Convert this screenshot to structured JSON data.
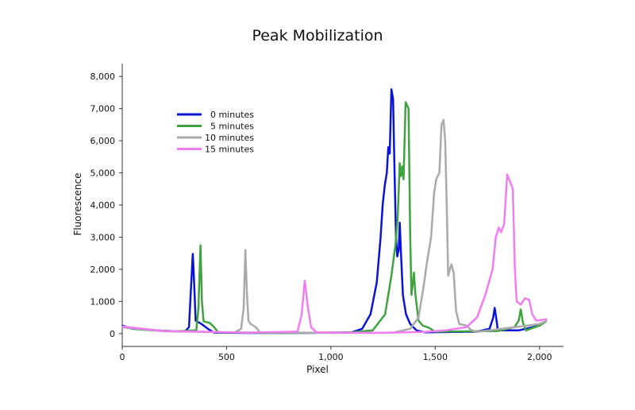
{
  "chart_data": {
    "type": "line",
    "title": "Peak Mobilization",
    "xlabel": "Pixel",
    "ylabel": "Fluorescence",
    "xlim": [
      0,
      2115
    ],
    "ylim": [
      -400,
      8400
    ],
    "xticks": [
      0,
      500,
      1000,
      1500,
      2000
    ],
    "xtick_labels": [
      "0",
      "500",
      "1,000",
      "1,500",
      "2,000"
    ],
    "yticks": [
      0,
      1000,
      2000,
      3000,
      4000,
      5000,
      6000,
      7000,
      8000
    ],
    "ytick_labels": [
      "0",
      "1,000",
      "2,000",
      "3,000",
      "4,000",
      "5,000",
      "6,000",
      "7,000",
      "8,000"
    ],
    "grid": false,
    "legend_placement": "top-left",
    "series": [
      {
        "name": "0 minutes",
        "color": "#0a14d8",
        "points": [
          [
            0,
            250
          ],
          [
            50,
            150
          ],
          [
            150,
            100
          ],
          [
            300,
            60
          ],
          [
            320,
            200
          ],
          [
            330,
            1500
          ],
          [
            338,
            2480
          ],
          [
            345,
            1500
          ],
          [
            352,
            400
          ],
          [
            380,
            300
          ],
          [
            410,
            150
          ],
          [
            440,
            30
          ],
          [
            600,
            20
          ],
          [
            900,
            20
          ],
          [
            1100,
            40
          ],
          [
            1150,
            150
          ],
          [
            1190,
            600
          ],
          [
            1220,
            1600
          ],
          [
            1238,
            3000
          ],
          [
            1248,
            4000
          ],
          [
            1258,
            4600
          ],
          [
            1268,
            5000
          ],
          [
            1275,
            5800
          ],
          [
            1282,
            5600
          ],
          [
            1290,
            7600
          ],
          [
            1298,
            7300
          ],
          [
            1305,
            5000
          ],
          [
            1312,
            3000
          ],
          [
            1318,
            2400
          ],
          [
            1325,
            2600
          ],
          [
            1330,
            3450
          ],
          [
            1336,
            2500
          ],
          [
            1345,
            1200
          ],
          [
            1360,
            600
          ],
          [
            1380,
            300
          ],
          [
            1410,
            100
          ],
          [
            1450,
            40
          ],
          [
            1700,
            60
          ],
          [
            1760,
            150
          ],
          [
            1778,
            500
          ],
          [
            1785,
            800
          ],
          [
            1792,
            500
          ],
          [
            1800,
            100
          ],
          [
            1900,
            100
          ],
          [
            2000,
            250
          ],
          [
            2035,
            400
          ]
        ]
      },
      {
        "name": "5 minutes",
        "color": "#3fa33f",
        "points": [
          [
            0,
            200
          ],
          [
            100,
            120
          ],
          [
            250,
            70
          ],
          [
            355,
            100
          ],
          [
            365,
            800
          ],
          [
            375,
            2750
          ],
          [
            382,
            1000
          ],
          [
            390,
            380
          ],
          [
            420,
            330
          ],
          [
            440,
            200
          ],
          [
            460,
            40
          ],
          [
            800,
            20
          ],
          [
            1100,
            40
          ],
          [
            1200,
            100
          ],
          [
            1260,
            600
          ],
          [
            1290,
            1800
          ],
          [
            1310,
            2800
          ],
          [
            1320,
            3600
          ],
          [
            1330,
            5300
          ],
          [
            1336,
            4900
          ],
          [
            1342,
            5200
          ],
          [
            1348,
            4800
          ],
          [
            1358,
            7200
          ],
          [
            1372,
            7000
          ],
          [
            1380,
            3000
          ],
          [
            1386,
            1200
          ],
          [
            1393,
            1600
          ],
          [
            1398,
            1900
          ],
          [
            1405,
            1200
          ],
          [
            1420,
            400
          ],
          [
            1440,
            250
          ],
          [
            1470,
            180
          ],
          [
            1500,
            60
          ],
          [
            1800,
            80
          ],
          [
            1880,
            200
          ],
          [
            1900,
            400
          ],
          [
            1910,
            750
          ],
          [
            1920,
            350
          ],
          [
            1935,
            100
          ],
          [
            2000,
            250
          ],
          [
            2035,
            400
          ]
        ]
      },
      {
        "name": "10 minutes",
        "color": "#aaaaaa",
        "points": [
          [
            0,
            200
          ],
          [
            200,
            70
          ],
          [
            540,
            40
          ],
          [
            570,
            150
          ],
          [
            582,
            800
          ],
          [
            590,
            2600
          ],
          [
            598,
            1200
          ],
          [
            605,
            400
          ],
          [
            615,
            300
          ],
          [
            640,
            200
          ],
          [
            660,
            40
          ],
          [
            1000,
            20
          ],
          [
            1300,
            30
          ],
          [
            1380,
            150
          ],
          [
            1420,
            500
          ],
          [
            1445,
            1500
          ],
          [
            1460,
            2200
          ],
          [
            1480,
            3000
          ],
          [
            1495,
            4400
          ],
          [
            1505,
            4800
          ],
          [
            1520,
            5000
          ],
          [
            1530,
            6500
          ],
          [
            1540,
            6650
          ],
          [
            1548,
            6000
          ],
          [
            1555,
            4000
          ],
          [
            1562,
            1800
          ],
          [
            1570,
            2000
          ],
          [
            1578,
            2150
          ],
          [
            1588,
            1900
          ],
          [
            1600,
            700
          ],
          [
            1615,
            300
          ],
          [
            1650,
            250
          ],
          [
            1670,
            120
          ],
          [
            1700,
            50
          ],
          [
            2000,
            300
          ],
          [
            2035,
            400
          ]
        ]
      },
      {
        "name": "15 minutes",
        "color": "#f27cf2",
        "points": [
          [
            0,
            220
          ],
          [
            200,
            80
          ],
          [
            600,
            30
          ],
          [
            840,
            60
          ],
          [
            860,
            600
          ],
          [
            875,
            1650
          ],
          [
            888,
            900
          ],
          [
            905,
            200
          ],
          [
            930,
            40
          ],
          [
            1200,
            20
          ],
          [
            1450,
            50
          ],
          [
            1550,
            100
          ],
          [
            1650,
            200
          ],
          [
            1700,
            500
          ],
          [
            1740,
            1200
          ],
          [
            1775,
            2000
          ],
          [
            1790,
            3000
          ],
          [
            1805,
            3300
          ],
          [
            1815,
            3150
          ],
          [
            1830,
            3400
          ],
          [
            1845,
            4950
          ],
          [
            1860,
            4700
          ],
          [
            1872,
            4500
          ],
          [
            1882,
            2000
          ],
          [
            1890,
            1000
          ],
          [
            1910,
            900
          ],
          [
            1930,
            1100
          ],
          [
            1950,
            1050
          ],
          [
            1965,
            600
          ],
          [
            1985,
            400
          ],
          [
            2035,
            450
          ]
        ]
      }
    ]
  }
}
